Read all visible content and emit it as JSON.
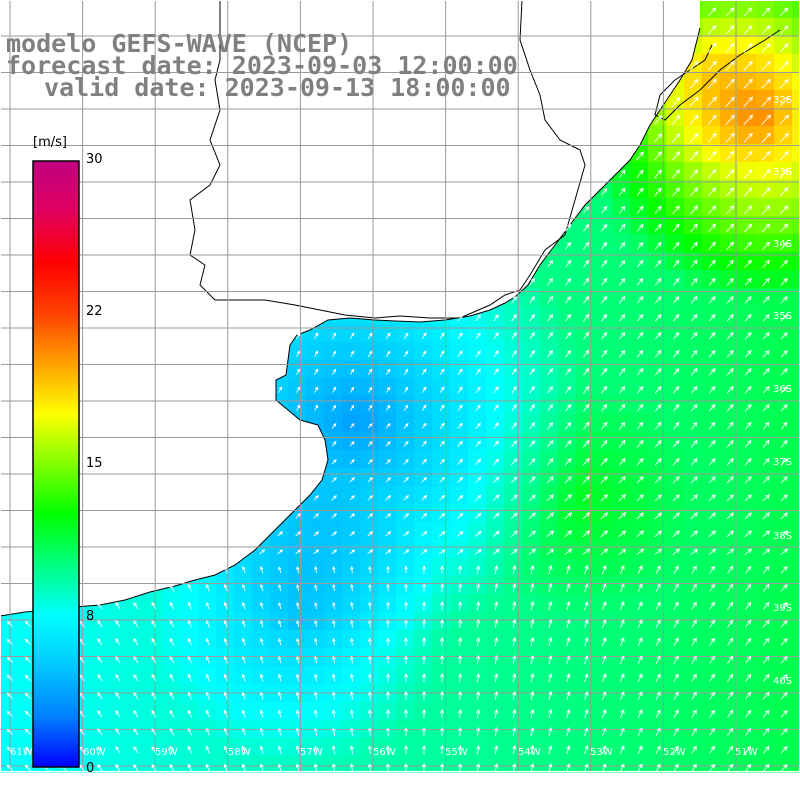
{
  "map": {
    "title": "modelo GEFS-WAVE (NCEP)",
    "forecast": "forecast date: 2023-09-03 12:00:00",
    "valid": "valid date: 2023-09-13 18:00:00",
    "variable_unit": "[m/s]",
    "colorbar": {
      "ticks": [
        "30",
        "22",
        "15",
        "8",
        "0"
      ],
      "colors": [
        "#0000ff",
        "#0080ff",
        "#00c8ff",
        "#00ffff",
        "#00ff80",
        "#00ff00",
        "#80ff00",
        "#ffff00",
        "#ffa000",
        "#ff4000",
        "#ff0000",
        "#e00060",
        "#c00080"
      ]
    },
    "lat_labels": [
      "32S",
      "33S",
      "34S",
      "35S",
      "36S",
      "37S",
      "38S",
      "39S",
      "40S"
    ],
    "lon_labels": [
      "61W",
      "60W",
      "59W",
      "58W",
      "57W",
      "56W",
      "55W",
      "54W",
      "53W",
      "52W",
      "51W"
    ],
    "land_color": "#ffffff",
    "coast_color": "#000000",
    "arrow_color": "#ffffff",
    "grid_color": "#9a9a9a"
  }
}
